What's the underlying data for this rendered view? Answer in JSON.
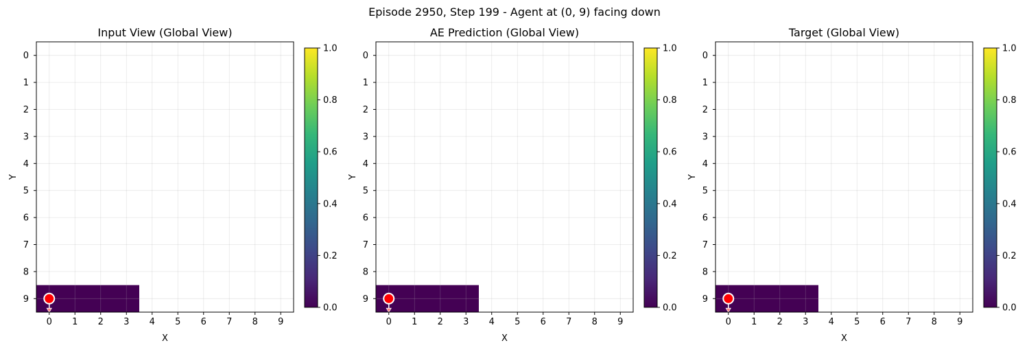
{
  "figure": {
    "suptitle": "Episode 2950, Step 199 - Agent at (0, 9) facing down"
  },
  "colormap": {
    "name": "viridis",
    "stops": [
      "#440154",
      "#482878",
      "#3e4989",
      "#31688e",
      "#26828e",
      "#1f9e89",
      "#35b779",
      "#6ece58",
      "#b5de2b",
      "#fde725"
    ],
    "range": [
      0,
      1
    ],
    "ticks": [
      "0.0",
      "0.2",
      "0.4",
      "0.6",
      "0.8",
      "1.0"
    ]
  },
  "chart_data": [
    {
      "type": "heatmap",
      "title": "Input View (Global View)",
      "xlabel": "X",
      "ylabel": "Y",
      "xticks": [
        "0",
        "1",
        "2",
        "3",
        "4",
        "5",
        "6",
        "7",
        "8",
        "9"
      ],
      "yticks": [
        "0",
        "1",
        "2",
        "3",
        "4",
        "5",
        "6",
        "7",
        "8",
        "9"
      ],
      "grid": true,
      "cells": [
        {
          "x": 0,
          "y": 9,
          "value": 0.0
        },
        {
          "x": 1,
          "y": 9,
          "value": 0.0
        },
        {
          "x": 2,
          "y": 9,
          "value": 0.0
        },
        {
          "x": 3,
          "y": 9,
          "value": 0.0
        }
      ],
      "agent": {
        "x": 0,
        "y": 9,
        "facing": "down",
        "color": "#ff0000"
      }
    },
    {
      "type": "heatmap",
      "title": "AE Prediction (Global View)",
      "xlabel": "X",
      "ylabel": "Y",
      "xticks": [
        "0",
        "1",
        "2",
        "3",
        "4",
        "5",
        "6",
        "7",
        "8",
        "9"
      ],
      "yticks": [
        "0",
        "1",
        "2",
        "3",
        "4",
        "5",
        "6",
        "7",
        "8",
        "9"
      ],
      "grid": true,
      "cells": [
        {
          "x": 0,
          "y": 9,
          "value": 0.0
        },
        {
          "x": 1,
          "y": 9,
          "value": 0.0
        },
        {
          "x": 2,
          "y": 9,
          "value": 0.0
        },
        {
          "x": 3,
          "y": 9,
          "value": 0.0
        }
      ],
      "agent": {
        "x": 0,
        "y": 9,
        "facing": "down",
        "color": "#ff0000"
      }
    },
    {
      "type": "heatmap",
      "title": "Target (Global View)",
      "xlabel": "X",
      "ylabel": "Y",
      "xticks": [
        "0",
        "1",
        "2",
        "3",
        "4",
        "5",
        "6",
        "7",
        "8",
        "9"
      ],
      "yticks": [
        "0",
        "1",
        "2",
        "3",
        "4",
        "5",
        "6",
        "7",
        "8",
        "9"
      ],
      "grid": true,
      "cells": [
        {
          "x": 0,
          "y": 9,
          "value": 0.0
        },
        {
          "x": 1,
          "y": 9,
          "value": 0.0
        },
        {
          "x": 2,
          "y": 9,
          "value": 0.0
        },
        {
          "x": 3,
          "y": 9,
          "value": 0.0
        }
      ],
      "agent": {
        "x": 0,
        "y": 9,
        "facing": "down",
        "color": "#ff0000"
      }
    }
  ]
}
